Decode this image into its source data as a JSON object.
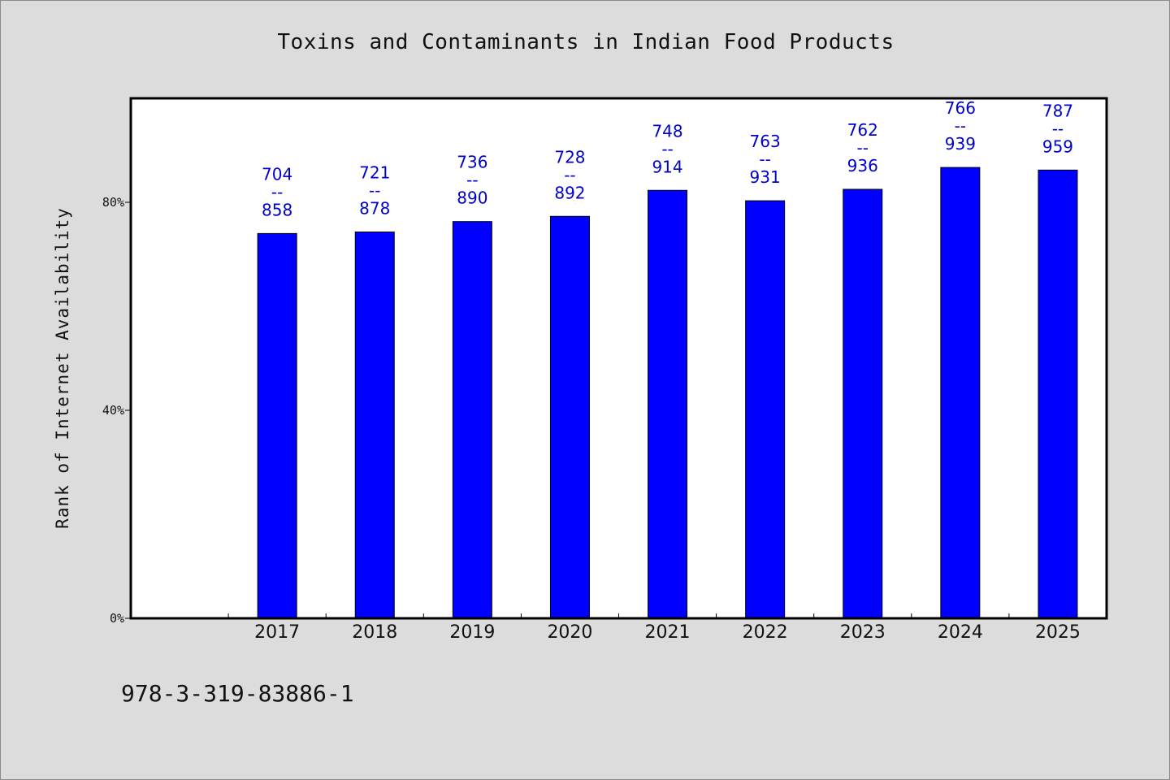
{
  "chart_data": {
    "type": "bar",
    "title": "Toxins and Contaminants in Indian Food Products",
    "ylabel": "Rank of Internet Availability",
    "xlabel": "",
    "categories": [
      "2017",
      "2018",
      "2019",
      "2020",
      "2021",
      "2022",
      "2023",
      "2024",
      "2025"
    ],
    "values": [
      74,
      74.3,
      76.3,
      77.3,
      82.3,
      80.3,
      82.5,
      86.7,
      86.2
    ],
    "data_labels": [
      {
        "top": "704",
        "mid": "--",
        "bottom": "858"
      },
      {
        "top": "721",
        "mid": "--",
        "bottom": "878"
      },
      {
        "top": "736",
        "mid": "--",
        "bottom": "890"
      },
      {
        "top": "728",
        "mid": "--",
        "bottom": "892"
      },
      {
        "top": "748",
        "mid": "--",
        "bottom": "914"
      },
      {
        "top": "763",
        "mid": "--",
        "bottom": "931"
      },
      {
        "top": "762",
        "mid": "--",
        "bottom": "936"
      },
      {
        "top": "766",
        "mid": "--",
        "bottom": "939"
      },
      {
        "top": "787",
        "mid": "--",
        "bottom": "959"
      }
    ],
    "yticks": [
      {
        "value": 0,
        "label": "0%"
      },
      {
        "value": 40,
        "label": "40%"
      },
      {
        "value": 80,
        "label": "80%"
      }
    ],
    "ylim": [
      0,
      100
    ],
    "grid": false,
    "bar_color": "#0000ff",
    "label_color": "#0000cc"
  },
  "footer": {
    "isbn": "978-3-319-83886-1"
  }
}
